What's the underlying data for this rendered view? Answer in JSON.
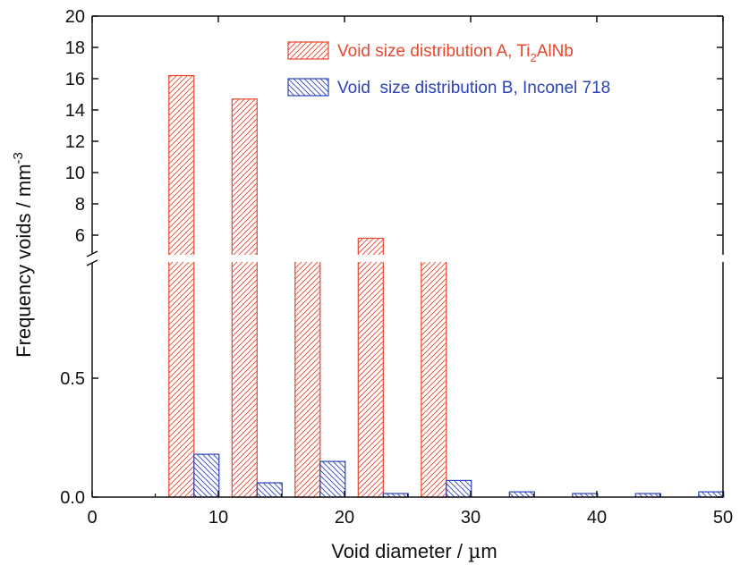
{
  "chart_data": {
    "type": "bar",
    "xlabel_text": "Void diameter / ",
    "xlabel_mu": "µ",
    "xlabel_unit": "m",
    "ylabel_text": "Frequency voids / mm",
    "ylabel_exp": "-3",
    "xlim": [
      0,
      50
    ],
    "xticks": [
      0,
      10,
      20,
      30,
      40,
      50
    ],
    "xtick_labels": [
      "0",
      "10",
      "20",
      "30",
      "40",
      "50"
    ],
    "lower_ylim": [
      0,
      1
    ],
    "lower_yticks": [
      0,
      0.5
    ],
    "lower_ytick_labels": [
      "0.0",
      "0.5"
    ],
    "upper_ylim": [
      4,
      20
    ],
    "upper_yticks": [
      6,
      8,
      10,
      12,
      14,
      16,
      18,
      20
    ],
    "upper_ytick_labels": [
      "6",
      "8",
      "10",
      "12",
      "14",
      "16",
      "18",
      "20"
    ],
    "axis_break": true,
    "legend_position": "top-right",
    "series": [
      {
        "name": "Void size distribution A, Ti2AlNb",
        "legend_parts": [
          "Void size distribution A, Ti",
          "2",
          "AlNb"
        ],
        "color": "#e8472d",
        "hatch": "forward",
        "x": [
          7.5,
          12.5,
          17.5,
          22.5,
          27.5
        ],
        "values": [
          16.2,
          14.7,
          4.5,
          5.8,
          4.5
        ]
      },
      {
        "name": "Void  size distribution B, Inconel 718",
        "legend_parts": [
          "Void  size distribution B, Inconel 718"
        ],
        "color": "#2c44b8",
        "hatch": "backward",
        "x": [
          7.5,
          12.5,
          17.5,
          22.5,
          27.5,
          32.5,
          37.5,
          42.5,
          47.5
        ],
        "values": [
          0.18,
          0.06,
          0.15,
          0.015,
          0.07,
          0.022,
          0.015,
          0.015,
          0.022
        ]
      }
    ]
  }
}
